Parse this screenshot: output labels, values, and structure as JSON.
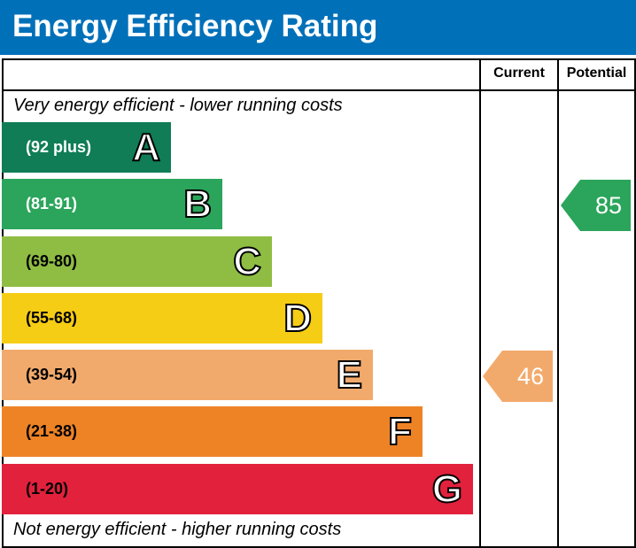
{
  "title": "Energy Efficiency Rating",
  "columns": {
    "current": "Current",
    "potential": "Potential"
  },
  "notes": {
    "top": "Very energy efficient - lower running costs",
    "bottom": "Not energy efficient - higher running costs"
  },
  "chart_data": {
    "type": "bar",
    "title": "Energy Efficiency Rating",
    "categories": [
      "A",
      "B",
      "C",
      "D",
      "E",
      "F",
      "G"
    ],
    "ranges": [
      "(92 plus)",
      "(81-91)",
      "(69-80)",
      "(55-68)",
      "(39-54)",
      "(21-38)",
      "(1-20)"
    ],
    "colors": [
      "#107d57",
      "#2ba55b",
      "#8fbd43",
      "#f6cd15",
      "#f2aa6c",
      "#ee8326",
      "#e2213c"
    ],
    "current": {
      "label": "Current",
      "value": 46,
      "band": "E",
      "color": "#f2aa6c"
    },
    "potential": {
      "label": "Potential",
      "value": 85,
      "band": "B",
      "color": "#2ba55b"
    }
  }
}
